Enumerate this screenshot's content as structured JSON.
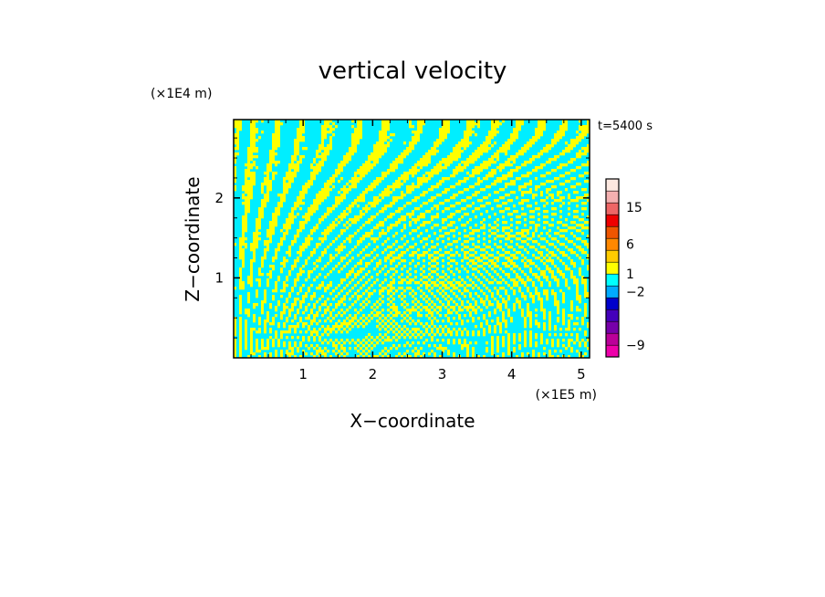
{
  "chart_data": {
    "type": "heatmap",
    "title": "vertical velocity",
    "time_label": "t=5400 s",
    "xlabel": "X−coordinate",
    "ylabel": "Z−coordinate",
    "x_unit": "(×1E5 m)",
    "y_unit": "(×1E4 m)",
    "xlim": [
      0,
      5.12
    ],
    "ylim": [
      0,
      2.98
    ],
    "x_ticks": [
      {
        "value": 1,
        "label": "1"
      },
      {
        "value": 2,
        "label": "2"
      },
      {
        "value": 3,
        "label": "3"
      },
      {
        "value": 4,
        "label": "4"
      },
      {
        "value": 5,
        "label": "5"
      }
    ],
    "y_ticks": [
      {
        "value": 1,
        "label": "1"
      },
      {
        "value": 2,
        "label": "2"
      }
    ],
    "field_colors": {
      "positive": "#ffff00",
      "negative": "#00eeff"
    },
    "colorbar": {
      "levels": [
        {
          "color": "#ee00aa"
        },
        {
          "color": "#bb0099"
        },
        {
          "color": "#7700aa"
        },
        {
          "color": "#4400bb"
        },
        {
          "color": "#0000cc"
        },
        {
          "color": "#00aaff"
        },
        {
          "color": "#00ffff"
        },
        {
          "color": "#ffff00"
        },
        {
          "color": "#ffcc00"
        },
        {
          "color": "#ff8800"
        },
        {
          "color": "#ee5500"
        },
        {
          "color": "#ee0000"
        },
        {
          "color": "#ee6666"
        },
        {
          "color": "#f4b0b0"
        },
        {
          "color": "#fde8e0"
        }
      ],
      "labels": [
        {
          "text": "−9",
          "level": 1
        },
        {
          "text": "−2",
          "level": 5.5
        },
        {
          "text": "1",
          "level": 7
        },
        {
          "text": "6",
          "level": 9.5
        },
        {
          "text": "15",
          "level": 12.6
        }
      ]
    }
  }
}
